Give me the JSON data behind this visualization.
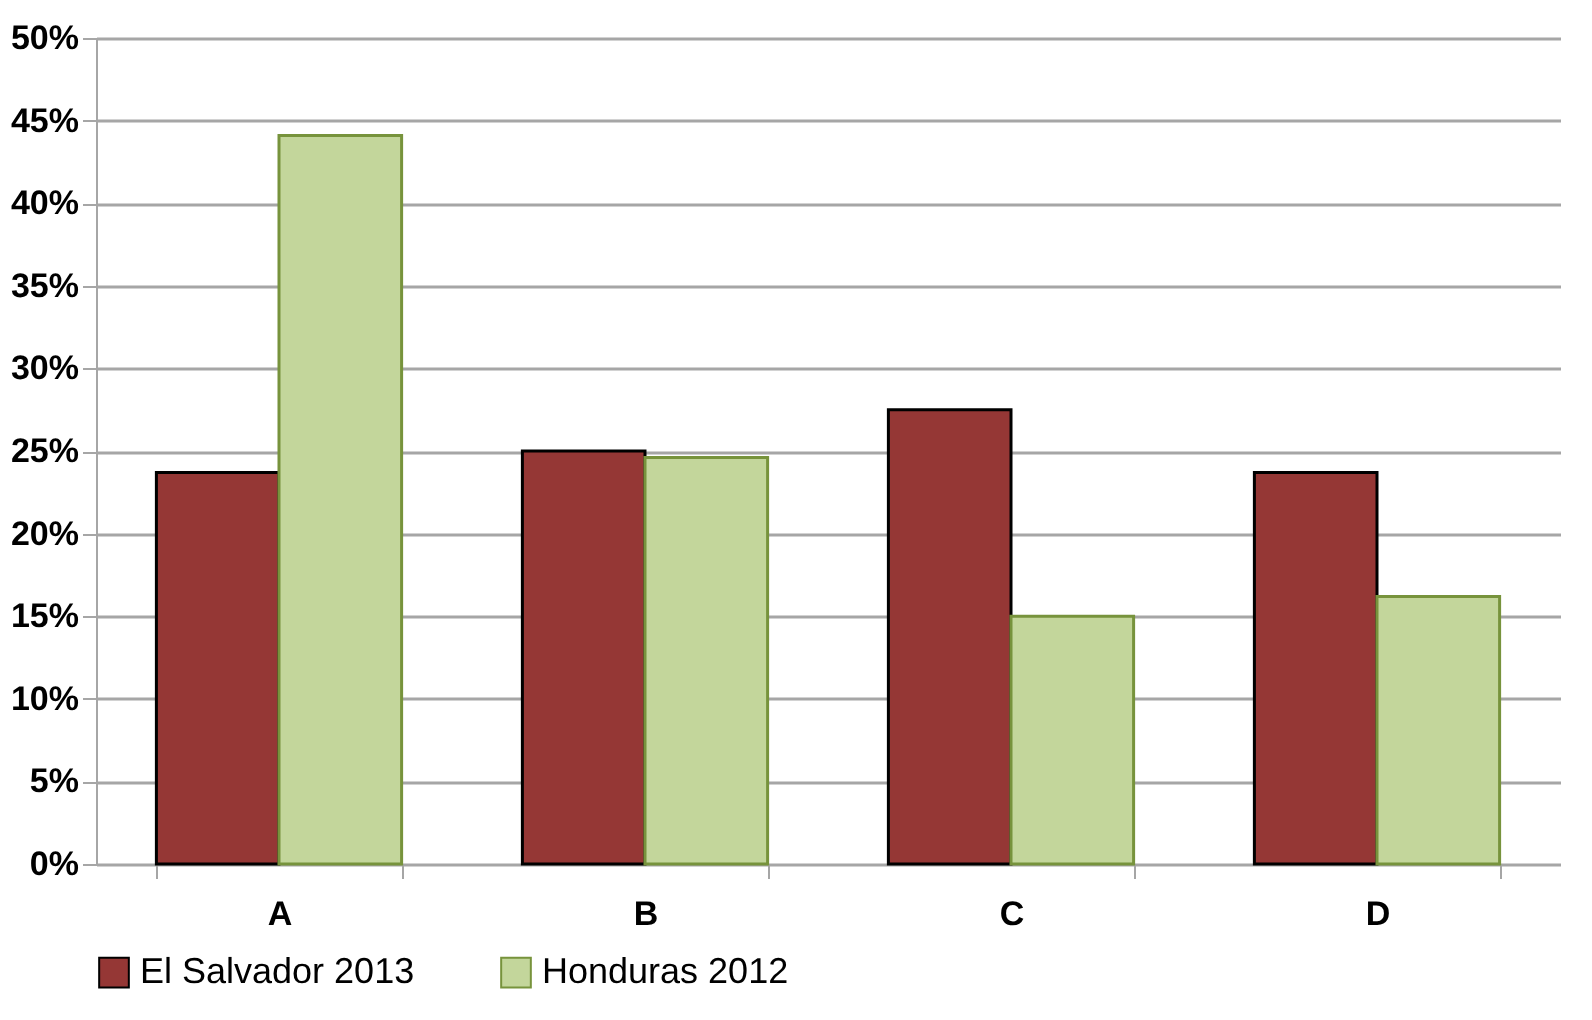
{
  "chart_data": {
    "type": "bar",
    "categories": [
      "A",
      "B",
      "C",
      "D"
    ],
    "series": [
      {
        "name": "El Salvador 2013",
        "color": "#953735",
        "values": [
          23.7,
          25.0,
          27.5,
          23.7
        ]
      },
      {
        "name": "Honduras 2012",
        "color": "#c3d69b",
        "values": [
          44.1,
          24.6,
          15.0,
          16.2
        ]
      }
    ],
    "ylim": [
      0,
      50
    ],
    "yticks": [
      {
        "value": 0,
        "label": "0%"
      },
      {
        "value": 5,
        "label": "5%"
      },
      {
        "value": 10,
        "label": "10%"
      },
      {
        "value": 15,
        "label": "15%"
      },
      {
        "value": 20,
        "label": "20%"
      },
      {
        "value": 25,
        "label": "25%"
      },
      {
        "value": 30,
        "label": "30%"
      },
      {
        "value": 35,
        "label": "35%"
      },
      {
        "value": 40,
        "label": "40%"
      },
      {
        "value": 45,
        "label": "45%"
      },
      {
        "value": 50,
        "label": "50%"
      }
    ],
    "grid": "y",
    "legend": "bottom"
  }
}
